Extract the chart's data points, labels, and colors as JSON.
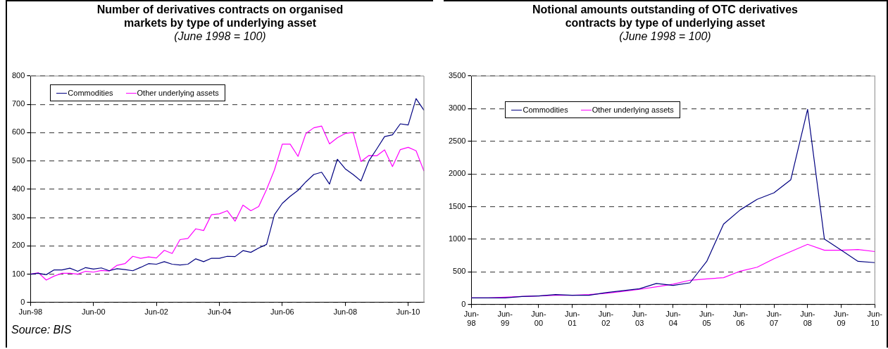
{
  "chart_data": [
    {
      "type": "line",
      "title": "Number of derivatives contracts on organised markets by type of underlying asset",
      "subtitle": "(June 1998 = 100)",
      "categories": [
        "Jun-98",
        null,
        null,
        null,
        null,
        null,
        null,
        null,
        "Jun-00",
        null,
        null,
        null,
        null,
        null,
        null,
        null,
        "Jun-02",
        null,
        null,
        null,
        null,
        null,
        null,
        null,
        "Jun-04",
        null,
        null,
        null,
        null,
        null,
        null,
        null,
        "Jun-06",
        null,
        null,
        null,
        null,
        null,
        null,
        null,
        "Jun-08",
        null,
        null,
        null,
        null,
        null,
        null,
        null,
        "Jun-10",
        null,
        null
      ],
      "series": [
        {
          "name": "Commodities",
          "color": "#000080",
          "values": [
            100,
            103,
            98,
            115,
            115,
            121,
            110,
            123,
            118,
            122,
            112,
            119,
            116,
            112,
            124,
            137,
            135,
            144,
            135,
            132,
            135,
            154,
            144,
            156,
            156,
            163,
            162,
            183,
            177,
            192,
            205,
            310,
            350,
            375,
            396,
            426,
            452,
            460,
            418,
            506,
            472,
            452,
            429,
            500,
            542,
            586,
            592,
            631,
            627,
            720,
            679
          ]
        },
        {
          "name": "Other underlying assets",
          "color": "#ff00ff",
          "values": [
            100,
            105,
            79,
            93,
            103,
            103,
            100,
            110,
            107,
            113,
            111,
            131,
            137,
            163,
            156,
            161,
            157,
            184,
            173,
            222,
            226,
            260,
            254,
            310,
            313,
            324,
            287,
            344,
            324,
            339,
            399,
            468,
            559,
            559,
            516,
            597,
            617,
            623,
            560,
            582,
            597,
            601,
            498,
            519,
            518,
            539,
            480,
            540,
            548,
            536,
            464
          ]
        }
      ],
      "ylim": [
        0,
        800
      ],
      "yticks": [
        0,
        100,
        200,
        300,
        400,
        500,
        600,
        700,
        800
      ],
      "grid": "y",
      "legend": "top left",
      "annotations": [
        "Source: BIS"
      ]
    },
    {
      "type": "line",
      "title": "Notional amounts outstanding of OTC derivatives contracts by type of underlying asset",
      "subtitle": "(June 1998 = 100)",
      "categories": [
        "Jun-98",
        null,
        "Jun-99",
        null,
        "Jun-00",
        null,
        "Jun-01",
        null,
        "Jun-02",
        null,
        "Jun-03",
        null,
        "Jun-04",
        null,
        "Jun-05",
        null,
        "Jun-06",
        null,
        "Jun-07",
        null,
        "Jun-08",
        null,
        "Jun-09",
        null,
        "Jun-10"
      ],
      "series": [
        {
          "name": "Commodities",
          "color": "#000080",
          "values": [
            100,
            100,
            100,
            120,
            130,
            150,
            140,
            140,
            180,
            210,
            240,
            320,
            290,
            330,
            660,
            1230,
            1450,
            1610,
            1710,
            1910,
            2990,
            1000,
            830,
            660,
            640
          ]
        },
        {
          "name": "Other underlying assets",
          "color": "#ff00ff",
          "values": [
            100,
            100,
            110,
            120,
            130,
            140,
            140,
            150,
            170,
            200,
            230,
            270,
            310,
            370,
            390,
            410,
            510,
            570,
            700,
            810,
            920,
            830,
            830,
            840,
            810
          ]
        }
      ],
      "ylim": [
        0,
        3500
      ],
      "yticks": [
        0,
        500,
        1000,
        1500,
        2000,
        2500,
        3000,
        3500
      ],
      "grid": "y",
      "legend": "top left"
    }
  ]
}
